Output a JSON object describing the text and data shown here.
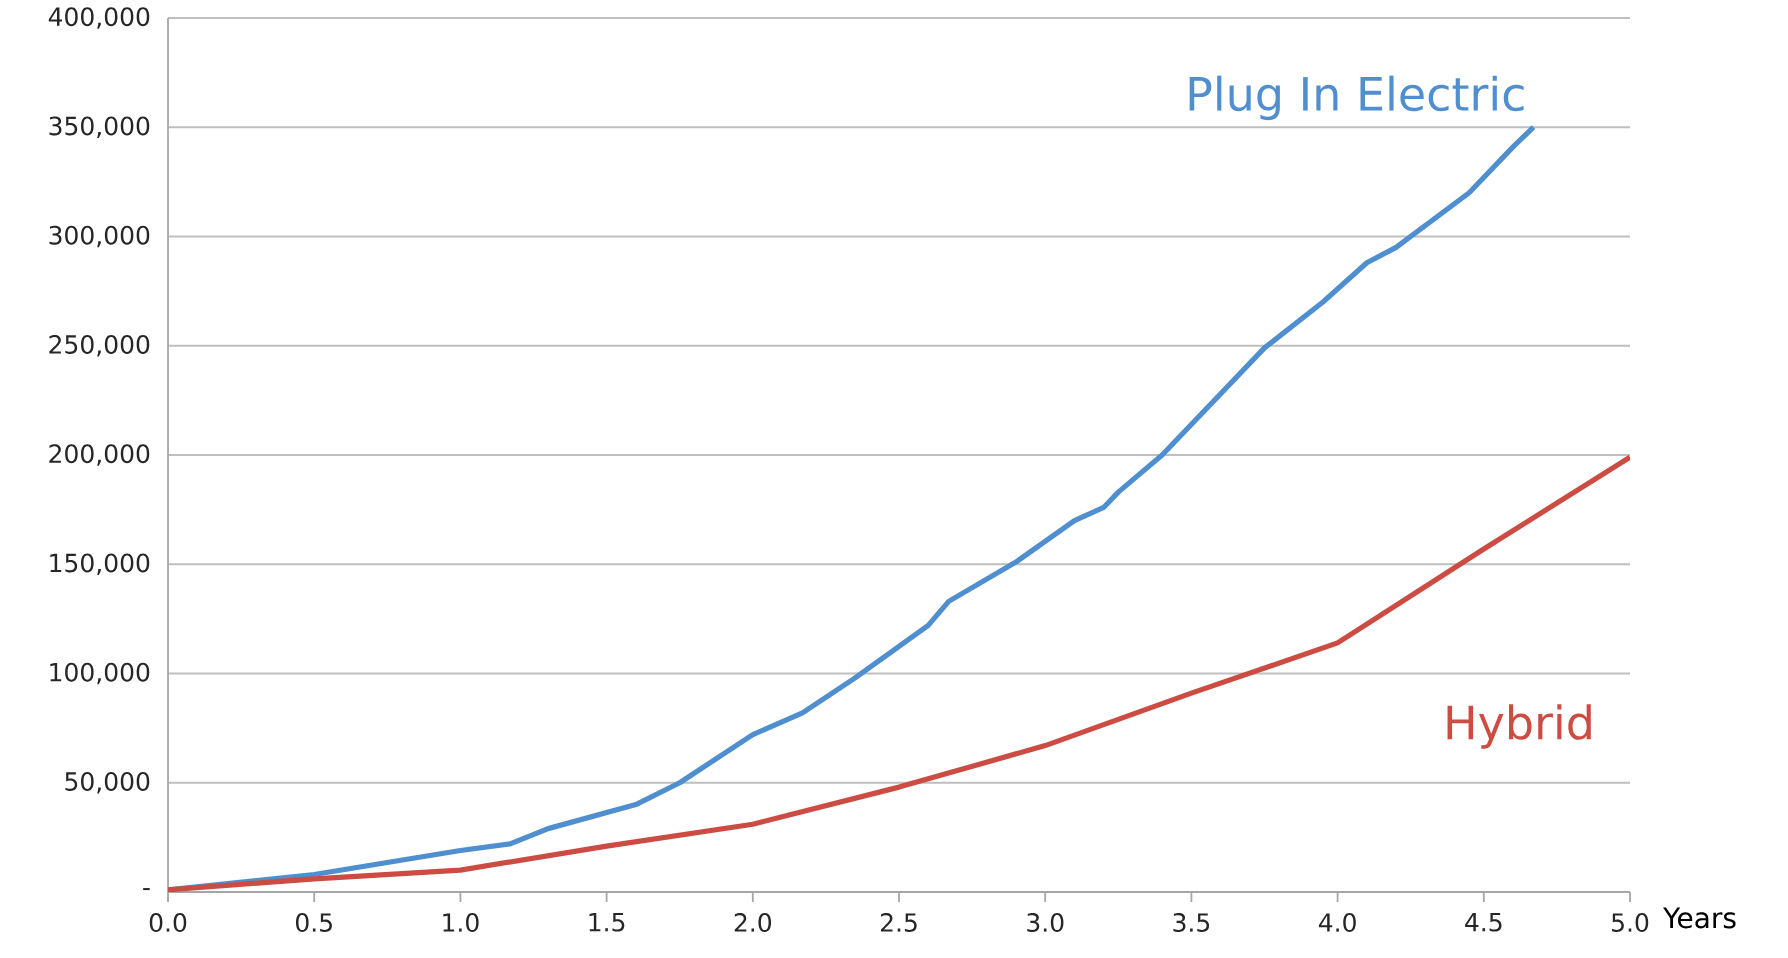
{
  "chart_data": {
    "type": "line",
    "xlabel": "Years",
    "xlim": [
      0,
      5
    ],
    "ylim": [
      0,
      400000
    ],
    "xticks": [
      {
        "value": 0,
        "label": "0.0"
      },
      {
        "value": 0.5,
        "label": "0.5"
      },
      {
        "value": 1,
        "label": "1.0"
      },
      {
        "value": 1.5,
        "label": "1.5"
      },
      {
        "value": 2,
        "label": "2.0"
      },
      {
        "value": 2.5,
        "label": "2.5"
      },
      {
        "value": 3,
        "label": "3.0"
      },
      {
        "value": 3.5,
        "label": "3.5"
      },
      {
        "value": 4,
        "label": "4.0"
      },
      {
        "value": 4.5,
        "label": "4.5"
      },
      {
        "value": 5,
        "label": "5.0"
      }
    ],
    "yticks": [
      {
        "value": 0,
        "label": "-"
      },
      {
        "value": 50000,
        "label": "50,000"
      },
      {
        "value": 100000,
        "label": "100,000"
      },
      {
        "value": 150000,
        "label": "150,000"
      },
      {
        "value": 200000,
        "label": "200,000"
      },
      {
        "value": 250000,
        "label": "250,000"
      },
      {
        "value": 300000,
        "label": "300,000"
      },
      {
        "value": 350000,
        "label": "350,000"
      },
      {
        "value": 400000,
        "label": "400,000"
      }
    ],
    "grid": "y",
    "legend": false,
    "marker": "none",
    "line_style": "solid",
    "series": [
      {
        "name": "Plug In Electric",
        "color": "#4f8fd0",
        "x": [
          0,
          0.5,
          1.0,
          1.17,
          1.3,
          1.6,
          1.75,
          2.0,
          2.17,
          2.35,
          2.6,
          2.67,
          2.9,
          3.1,
          3.2,
          3.25,
          3.4,
          3.75,
          3.95,
          4.1,
          4.2,
          4.45,
          4.6,
          4.67
        ],
        "values": [
          1000,
          8000,
          19000,
          22000,
          29000,
          40000,
          50000,
          72000,
          82000,
          98000,
          122000,
          133000,
          151000,
          170000,
          176000,
          183000,
          200000,
          249000,
          270000,
          288000,
          295000,
          320000,
          341000,
          350000
        ]
      },
      {
        "name": "Hybrid",
        "color": "#cc4c44",
        "x": [
          0,
          0.5,
          1.0,
          1.5,
          2.0,
          2.5,
          3.0,
          3.5,
          4.0,
          4.5,
          5.0
        ],
        "values": [
          1000,
          6000,
          10000,
          21000,
          31000,
          48000,
          67000,
          91000,
          114000,
          157000,
          199000
        ]
      }
    ]
  }
}
